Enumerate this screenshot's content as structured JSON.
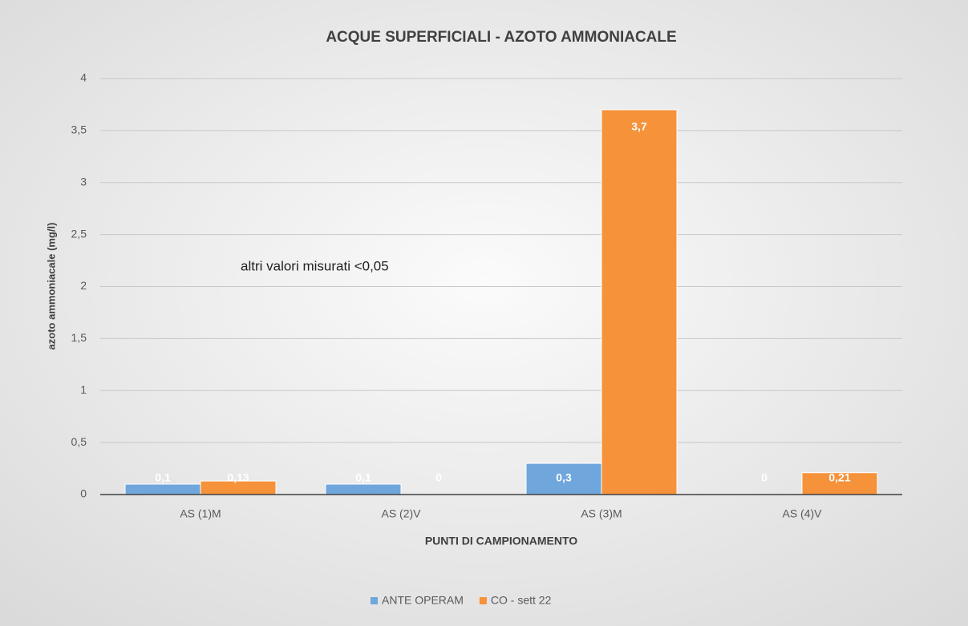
{
  "chart_data": {
    "type": "bar",
    "title": "ACQUE SUPERFICIALI - AZOTO AMMONIACALE",
    "x_label": "PUNTI DI CAMPIONAMENTO",
    "y_label": "azoto ammoniacale (mg/l)",
    "annotation": "altri valori misurati  <0,05",
    "categories": [
      "AS (1)M",
      "AS (2)V",
      "AS (3)M",
      "AS (4)V"
    ],
    "series": [
      {
        "name": "ANTE OPERAM",
        "color": "#6fa6dc",
        "values": [
          0.1,
          0.1,
          0.3,
          0
        ],
        "value_labels": [
          "0,1",
          "0,1",
          "0,3",
          "0"
        ]
      },
      {
        "name": "CO - sett 22",
        "color": "#f5923a",
        "values": [
          0.13,
          0,
          3.7,
          0.21
        ],
        "value_labels": [
          "0,13",
          "0",
          "3,7",
          "0,21"
        ]
      }
    ],
    "ylim": [
      0,
      4
    ],
    "yticks": [
      0,
      {
        "value": 0.5,
        "label": "0,5"
      },
      1,
      {
        "value": 1.5,
        "label": "1,5"
      },
      2,
      {
        "value": 2.5,
        "label": "2,5"
      },
      3,
      {
        "value": 3.5,
        "label": "3,5"
      },
      4
    ],
    "grid": true,
    "legend": "bottom"
  }
}
